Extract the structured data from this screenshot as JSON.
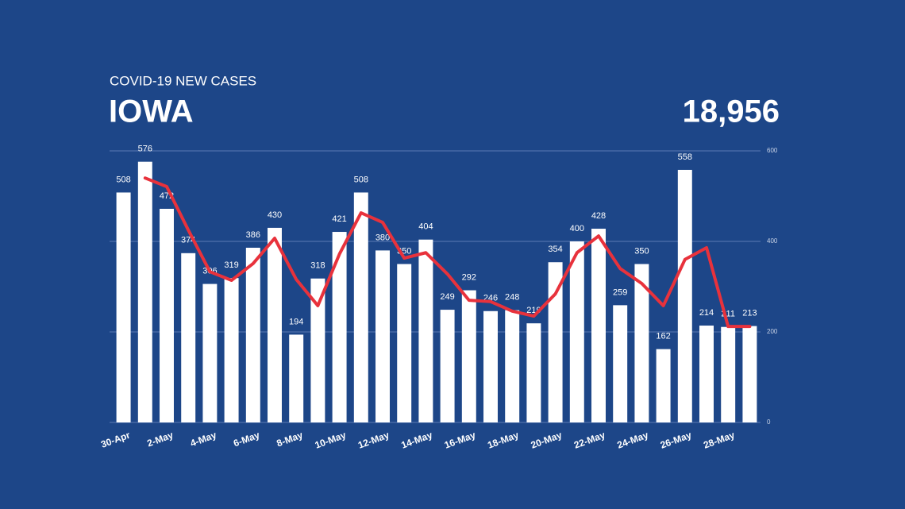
{
  "chart_data": {
    "type": "bar",
    "title": "COVID-19 NEW CASES",
    "subtitle": "IOWA",
    "total": "18,956",
    "categories": [
      "30-Apr",
      null,
      "2-May",
      null,
      "4-May",
      null,
      "6-May",
      null,
      "8-May",
      null,
      "10-May",
      null,
      "12-May",
      null,
      "14-May",
      null,
      "16-May",
      null,
      "18-May",
      null,
      "20-May",
      null,
      "22-May",
      null,
      "24-May",
      null,
      "26-May",
      null,
      "28-May",
      null
    ],
    "series": [
      {
        "type": "bar",
        "color": "#ffffff",
        "values": [
          508,
          576,
          472,
          374,
          306,
          319,
          386,
          430,
          194,
          318,
          421,
          508,
          380,
          350,
          404,
          249,
          292,
          246,
          248,
          219,
          354,
          400,
          428,
          259,
          350,
          162,
          558,
          214,
          211,
          213
        ]
      },
      {
        "type": "line",
        "color": "#e8323c",
        "values": [
          null,
          540,
          521,
          425,
          333,
          314,
          351,
          407,
          316,
          258,
          372,
          463,
          442,
          363,
          375,
          328,
          270,
          267,
          246,
          235,
          284,
          375,
          412,
          340,
          307,
          258,
          360,
          386,
          212,
          212
        ]
      }
    ],
    "ylim": [
      0,
      600
    ],
    "yticks": [
      0,
      200,
      400,
      600
    ],
    "grid": true,
    "data_labels": true
  }
}
